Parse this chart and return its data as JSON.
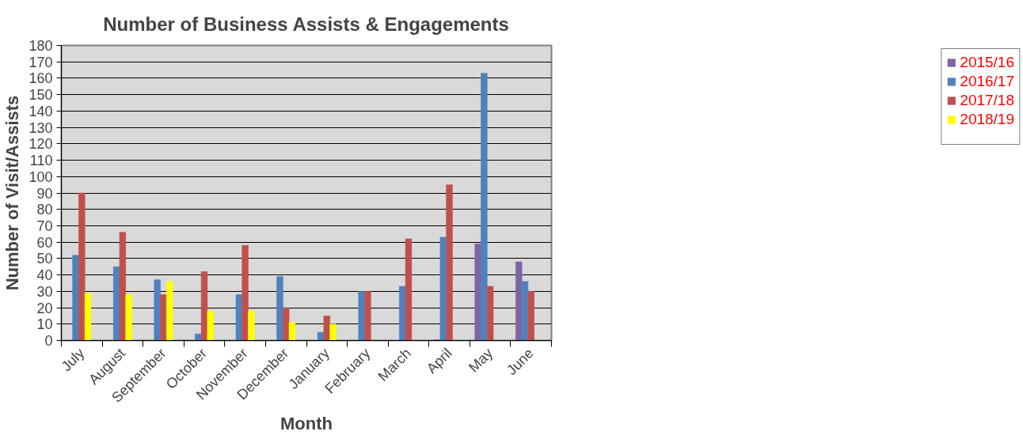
{
  "chart_data": {
    "type": "bar",
    "title": "Number of Business Assists & Engagements",
    "xlabel": "Month",
    "ylabel": "Number of Visit/Assists",
    "categories": [
      "July",
      "August",
      "September",
      "October",
      "November",
      "December",
      "January",
      "February",
      "March",
      "April",
      "May",
      "June"
    ],
    "series": [
      {
        "name": "2015/16",
        "color": "#8064a2",
        "values": [
          null,
          null,
          null,
          null,
          null,
          null,
          null,
          null,
          null,
          0.5,
          59,
          48
        ]
      },
      {
        "name": "2016/17",
        "color": "#4f81bd",
        "values": [
          52,
          45,
          37,
          4,
          28,
          39,
          5,
          30,
          33,
          63,
          163,
          36
        ]
      },
      {
        "name": "2017/18",
        "color": "#c0504d",
        "values": [
          90,
          66,
          28,
          42,
          58,
          20,
          15,
          30,
          62,
          95,
          33,
          30
        ]
      },
      {
        "name": "2018/19",
        "color": "#ffff00",
        "values": [
          29,
          28,
          36,
          18,
          18,
          11,
          10,
          null,
          null,
          null,
          null,
          null
        ]
      },
      {
        "color": "#4bacc6",
        "values": [
          null,
          null,
          null,
          null,
          null,
          null,
          null,
          null,
          null,
          null,
          null,
          null
        ]
      }
    ],
    "ylim": [
      0,
      180
    ],
    "yticks": [
      0,
      10,
      20,
      30,
      40,
      50,
      60,
      70,
      80,
      90,
      100,
      110,
      120,
      130,
      140,
      150,
      160,
      170,
      180
    ],
    "grid": "y",
    "legend": "right"
  }
}
